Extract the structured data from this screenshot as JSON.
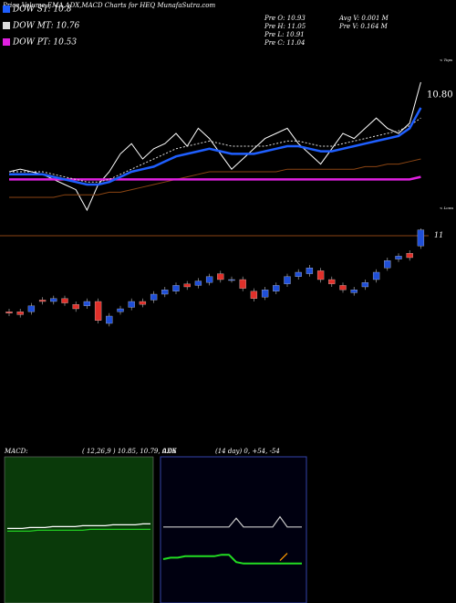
{
  "chart_data": {
    "type": "candlestick",
    "title": "Price,Volume,EMA,ADX,MACD Charts for HEQ MunafaSutra.com",
    "info": [
      "Pre  O: 10.93",
      "Pre  H: 11.05",
      "Pre  L: 10.91",
      "Pre  C: 11.04",
      "Avg V: 0.001 M",
      "Pre  V: 0.164 M"
    ],
    "tops_label": "< Tops",
    "lows_label": "< Lows",
    "last_label": "10.80",
    "price_line": 11,
    "up_color": "#1f4fd8",
    "down_color": "#e0302a",
    "open": [
      10.48,
      10.48,
      10.48,
      10.56,
      10.55,
      10.57,
      10.53,
      10.52,
      10.55,
      10.4,
      10.48,
      10.51,
      10.55,
      10.56,
      10.6,
      10.62,
      10.67,
      10.66,
      10.68,
      10.74,
      10.7,
      10.7,
      10.62,
      10.58,
      10.62,
      10.67,
      10.72,
      10.74,
      10.76,
      10.7,
      10.66,
      10.61,
      10.65,
      10.7,
      10.78,
      10.84,
      10.88,
      10.93
    ],
    "high": [
      10.5,
      10.5,
      10.54,
      10.58,
      10.59,
      10.59,
      10.55,
      10.57,
      10.57,
      10.47,
      10.52,
      10.57,
      10.57,
      10.62,
      10.65,
      10.68,
      10.69,
      10.71,
      10.74,
      10.76,
      10.72,
      10.72,
      10.64,
      10.65,
      10.68,
      10.74,
      10.77,
      10.8,
      10.78,
      10.72,
      10.68,
      10.65,
      10.7,
      10.77,
      10.85,
      10.88,
      10.9,
      11.05
    ],
    "low": [
      10.45,
      10.44,
      10.46,
      10.53,
      10.53,
      10.52,
      10.48,
      10.5,
      10.4,
      10.38,
      10.46,
      10.49,
      10.51,
      10.54,
      10.58,
      10.6,
      10.63,
      10.64,
      10.66,
      10.68,
      10.68,
      10.62,
      10.55,
      10.56,
      10.6,
      10.65,
      10.7,
      10.72,
      10.68,
      10.65,
      10.61,
      10.59,
      10.63,
      10.68,
      10.76,
      10.82,
      10.83,
      10.91
    ],
    "close": [
      10.47,
      10.46,
      10.52,
      10.55,
      10.57,
      10.54,
      10.5,
      10.55,
      10.42,
      10.45,
      10.5,
      10.55,
      10.53,
      10.6,
      10.63,
      10.66,
      10.65,
      10.69,
      10.72,
      10.7,
      10.7,
      10.64,
      10.57,
      10.63,
      10.66,
      10.72,
      10.75,
      10.78,
      10.7,
      10.67,
      10.63,
      10.63,
      10.68,
      10.75,
      10.83,
      10.86,
      10.85,
      11.04
    ],
    "series": [
      {
        "color": "#ffffff",
        "values": [
          10.55,
          10.56,
          10.55,
          10.54,
          10.52,
          10.5,
          10.48,
          10.4,
          10.5,
          10.55,
          10.62,
          10.66,
          10.6,
          10.64,
          10.66,
          10.7,
          10.65,
          10.72,
          10.68,
          10.62,
          10.56,
          10.6,
          10.64,
          10.68,
          10.7,
          10.72,
          10.66,
          10.62,
          10.58,
          10.64,
          10.7,
          10.68,
          10.72,
          10.76,
          10.72,
          10.7,
          10.74,
          10.9
        ]
      },
      {
        "color": "#8b4513",
        "values": [
          10.45,
          10.45,
          10.45,
          10.45,
          10.45,
          10.46,
          10.46,
          10.46,
          10.46,
          10.47,
          10.47,
          10.48,
          10.49,
          10.5,
          10.51,
          10.52,
          10.53,
          10.54,
          10.55,
          10.55,
          10.55,
          10.55,
          10.55,
          10.55,
          10.55,
          10.56,
          10.56,
          10.56,
          10.56,
          10.56,
          10.56,
          10.56,
          10.57,
          10.57,
          10.58,
          10.58,
          10.59,
          10.6
        ]
      },
      {
        "name": "DOW PT: 10.53",
        "color": "#e020e0",
        "values": [
          10.52,
          10.52,
          10.52,
          10.52,
          10.52,
          10.52,
          10.52,
          10.52,
          10.52,
          10.52,
          10.52,
          10.52,
          10.52,
          10.52,
          10.52,
          10.52,
          10.52,
          10.52,
          10.52,
          10.52,
          10.52,
          10.52,
          10.52,
          10.52,
          10.52,
          10.52,
          10.52,
          10.52,
          10.52,
          10.52,
          10.52,
          10.52,
          10.52,
          10.52,
          10.52,
          10.52,
          10.52,
          10.53
        ]
      },
      {
        "name": "DOW MT: 10.76",
        "color": "#dddddd",
        "dashed": true,
        "values": [
          10.55,
          10.55,
          10.55,
          10.55,
          10.54,
          10.53,
          10.52,
          10.51,
          10.51,
          10.52,
          10.54,
          10.56,
          10.58,
          10.6,
          10.62,
          10.64,
          10.65,
          10.66,
          10.67,
          10.66,
          10.65,
          10.65,
          10.65,
          10.65,
          10.66,
          10.67,
          10.67,
          10.66,
          10.65,
          10.65,
          10.66,
          10.67,
          10.68,
          10.69,
          10.7,
          10.71,
          10.73,
          10.76
        ]
      },
      {
        "name": "DOW ST: 10.8",
        "color": "#1f5fff",
        "values": [
          10.54,
          10.54,
          10.54,
          10.54,
          10.53,
          10.52,
          10.51,
          10.5,
          10.5,
          10.51,
          10.53,
          10.55,
          10.56,
          10.57,
          10.59,
          10.61,
          10.62,
          10.63,
          10.64,
          10.63,
          10.62,
          10.62,
          10.62,
          10.63,
          10.64,
          10.65,
          10.65,
          10.64,
          10.63,
          10.63,
          10.64,
          10.65,
          10.66,
          10.67,
          10.68,
          10.69,
          10.72,
          10.8
        ]
      }
    ],
    "macd": {
      "label": "MACD:",
      "params": "( 12,26,9 ) 10.85, 10.79, 0.06",
      "series": [
        {
          "color": "#ffffff",
          "values": [
            10.8,
            10.8,
            10.8,
            10.81,
            10.81,
            10.81,
            10.82,
            10.82,
            10.82,
            10.82,
            10.83,
            10.83,
            10.83,
            10.83,
            10.84,
            10.84,
            10.84,
            10.84,
            10.85,
            10.85
          ]
        },
        {
          "color": "#22cc22",
          "values": [
            10.77,
            10.77,
            10.77,
            10.77,
            10.78,
            10.78,
            10.78,
            10.78,
            10.78,
            10.78,
            10.78,
            10.79,
            10.79,
            10.79,
            10.79,
            10.79,
            10.79,
            10.79,
            10.79,
            10.79
          ]
        }
      ]
    },
    "adx": {
      "label": "ADX",
      "params": "(14 day) 0, +54, -54",
      "series": [
        {
          "color": "#cccccc",
          "values": [
            52,
            52,
            52,
            52,
            52,
            52,
            52,
            52,
            52,
            52,
            58,
            52,
            52,
            52,
            52,
            52,
            59,
            52,
            52,
            52
          ]
        },
        {
          "color": "#22dd22",
          "values": [
            30,
            31,
            31,
            32,
            32,
            32,
            32,
            32,
            33,
            33,
            28,
            27,
            27,
            27,
            27,
            27,
            27,
            27,
            27,
            27
          ]
        },
        {
          "color": "#ff9900",
          "values": [
            null,
            null,
            null,
            null,
            null,
            null,
            null,
            null,
            null,
            null,
            null,
            null,
            null,
            null,
            null,
            null,
            29,
            34,
            null,
            null
          ]
        }
      ]
    }
  }
}
